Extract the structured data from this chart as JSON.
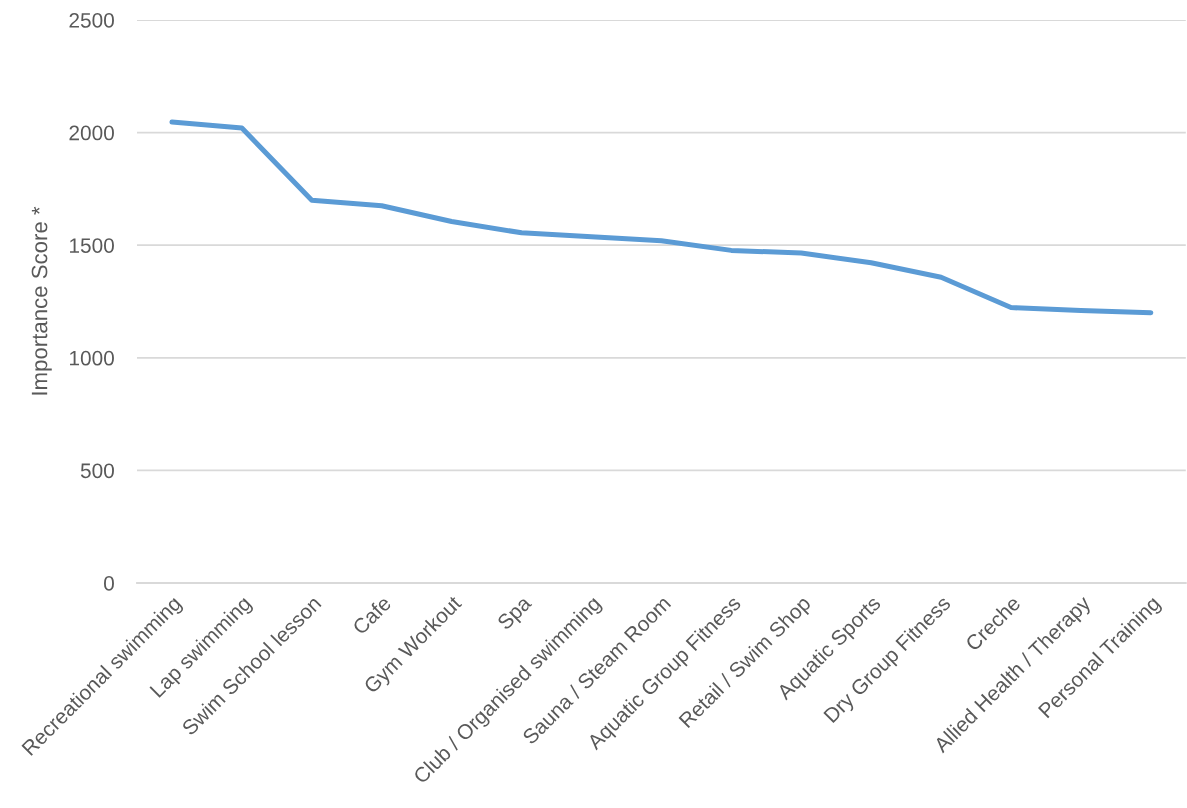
{
  "chart_data": {
    "type": "line",
    "ylabel": "Importance Score *",
    "categories": [
      "Recreational swimming",
      "Lap swimming",
      "Swim School lesson",
      "Cafe",
      "Gym Workout",
      "Spa",
      "Club / Organised swimming",
      "Sauna / Steam Room",
      "Aquatic Group Fitness",
      "Retail / Swim Shop",
      "Aquatic Sports",
      "Dry Group Fitness",
      "Creche",
      "Allied Health / Therapy",
      "Personal Training"
    ],
    "series": [
      {
        "color": "#5b9bd5",
        "values": [
          2047,
          2020,
          1700,
          1675,
          1605,
          1555,
          1537,
          1520,
          1477,
          1465,
          1422,
          1358,
          1223,
          1210,
          1200
        ]
      }
    ],
    "ylim": [
      0,
      2500
    ],
    "yticks": [
      0,
      500,
      1000,
      1500,
      2000,
      2500
    ],
    "grid": "y",
    "marker": "none",
    "line_style": "solid"
  }
}
